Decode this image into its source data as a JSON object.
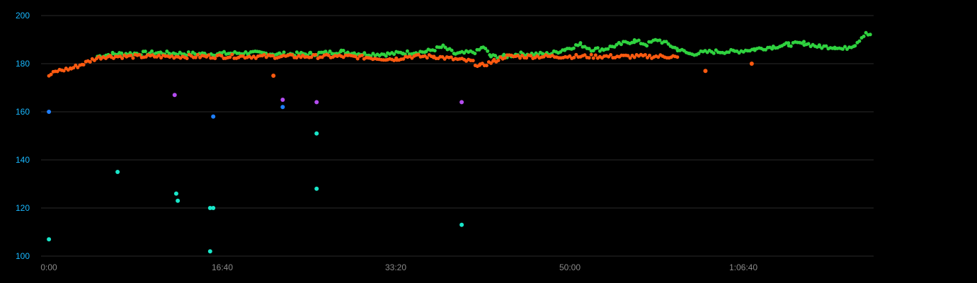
{
  "chart_data": {
    "type": "scatter",
    "title": "",
    "xlabel": "",
    "ylabel": "",
    "xlim": [
      0,
      4740
    ],
    "ylim": [
      100,
      200
    ],
    "y_ticks": [
      100,
      120,
      140,
      160,
      180,
      200
    ],
    "y_tick_labels": [
      "100",
      "120",
      "140",
      "160",
      "180",
      "200"
    ],
    "x_ticks": [
      0,
      1000,
      2000,
      3000,
      4000
    ],
    "x_tick_labels": [
      "0:00",
      "16:40",
      "33:20",
      "50:00",
      "1:06:40"
    ],
    "grid": true,
    "colors": {
      "green": "#2fd23f",
      "orange": "#ff5a10",
      "blue": "#1e7fff",
      "purple": "#b44cf0",
      "cyan": "#19e6c9",
      "y_tick_text": "#18b8ff",
      "x_tick_text": "#8a8a8a",
      "grid": "#2a2a2a",
      "background": "#000000"
    },
    "series": [
      {
        "color_key": "green",
        "curve_knots": [
          [
            320,
            183
          ],
          [
            420,
            184
          ],
          [
            700,
            184.5
          ],
          [
            1000,
            184
          ],
          [
            1300,
            184.5
          ],
          [
            1500,
            184
          ],
          [
            1700,
            184
          ],
          [
            1900,
            185
          ],
          [
            2050,
            184
          ],
          [
            2200,
            184
          ],
          [
            2300,
            184.5
          ],
          [
            2450,
            185
          ],
          [
            2560,
            187
          ],
          [
            2640,
            184
          ],
          [
            2780,
            185
          ],
          [
            2820,
            187
          ],
          [
            2870,
            183
          ],
          [
            2960,
            183
          ],
          [
            3050,
            184
          ],
          [
            3250,
            184
          ],
          [
            3350,
            186
          ],
          [
            3450,
            188
          ],
          [
            3520,
            186
          ],
          [
            3600,
            186
          ],
          [
            3700,
            188
          ],
          [
            3800,
            189.5
          ],
          [
            3880,
            188
          ],
          [
            3950,
            190
          ],
          [
            4020,
            188
          ],
          [
            4080,
            186
          ],
          [
            4160,
            184
          ],
          [
            4300,
            185
          ],
          [
            4450,
            185
          ],
          [
            4580,
            186
          ],
          [
            4700,
            187
          ],
          [
            4800,
            188
          ],
          [
            4900,
            188.5
          ],
          [
            5000,
            187
          ],
          [
            5100,
            187
          ],
          [
            5150,
            186
          ],
          [
            5230,
            188
          ],
          [
            5300,
            193
          ],
          [
            5340,
            191
          ]
        ]
      },
      {
        "color_key": "orange",
        "curve_knots": [
          [
            5,
            175
          ],
          [
            60,
            177
          ],
          [
            150,
            178
          ],
          [
            230,
            180
          ],
          [
            300,
            182
          ],
          [
            360,
            183
          ],
          [
            410,
            183
          ],
          [
            1150,
            183
          ],
          [
            1400,
            183
          ],
          [
            1650,
            183
          ],
          [
            1900,
            183
          ],
          [
            1950,
            183
          ],
          [
            2200,
            182
          ],
          [
            2260,
            182
          ],
          [
            2330,
            183
          ],
          [
            2500,
            183
          ],
          [
            2740,
            181
          ],
          [
            2800,
            179
          ],
          [
            2890,
            181
          ],
          [
            2960,
            183
          ],
          [
            4050,
            183
          ],
          [
            4090,
            182
          ]
        ],
        "outliers": [
          [
            1460,
            175
          ],
          [
            4260,
            177
          ],
          [
            4560,
            180
          ]
        ]
      },
      {
        "color_key": "blue",
        "points": [
          [
            5,
            160
          ],
          [
            1070,
            158
          ],
          [
            1520,
            162
          ]
        ]
      },
      {
        "color_key": "purple",
        "points": [
          [
            820,
            167
          ],
          [
            1520,
            165
          ],
          [
            1740,
            164
          ],
          [
            2680,
            164
          ]
        ]
      },
      {
        "color_key": "cyan",
        "points": [
          [
            5,
            107
          ],
          [
            450,
            135
          ],
          [
            830,
            126
          ],
          [
            840,
            123
          ],
          [
            1050,
            120
          ],
          [
            1070,
            120
          ],
          [
            1050,
            102
          ],
          [
            1740,
            151
          ],
          [
            1740,
            128
          ],
          [
            2680,
            113
          ]
        ]
      }
    ]
  }
}
